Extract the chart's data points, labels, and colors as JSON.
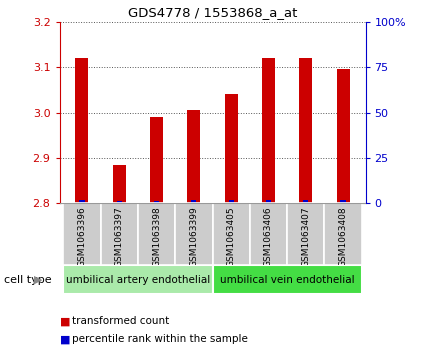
{
  "title": "GDS4778 / 1553868_a_at",
  "samples": [
    "GSM1063396",
    "GSM1063397",
    "GSM1063398",
    "GSM1063399",
    "GSM1063405",
    "GSM1063406",
    "GSM1063407",
    "GSM1063408"
  ],
  "red_values": [
    3.12,
    2.885,
    2.99,
    3.005,
    3.04,
    3.12,
    3.12,
    3.095
  ],
  "blue_values": [
    2.0,
    1.5,
    1.5,
    2.0,
    2.0,
    2.0,
    2.0,
    2.0
  ],
  "ylim_left": [
    2.8,
    3.2
  ],
  "ylim_right": [
    0,
    100
  ],
  "yticks_left": [
    2.8,
    2.9,
    3.0,
    3.1,
    3.2
  ],
  "yticks_right": [
    0,
    25,
    50,
    75,
    100
  ],
  "ytick_labels_right": [
    "0",
    "25",
    "50",
    "75",
    "100%"
  ],
  "left_color": "#cc0000",
  "right_color": "#0000cc",
  "bar_base": 2.8,
  "cell_type_labels": [
    "umbilical artery endothelial",
    "umbilical vein endothelial"
  ],
  "cell_type_color1": "#aaeaaa",
  "cell_type_color2": "#44dd44",
  "cell_type_label": "cell type",
  "legend_red": "transformed count",
  "legend_blue": "percentile rank within the sample",
  "background_color": "#ffffff",
  "sample_box_color": "#cccccc",
  "bar_width": 0.35
}
